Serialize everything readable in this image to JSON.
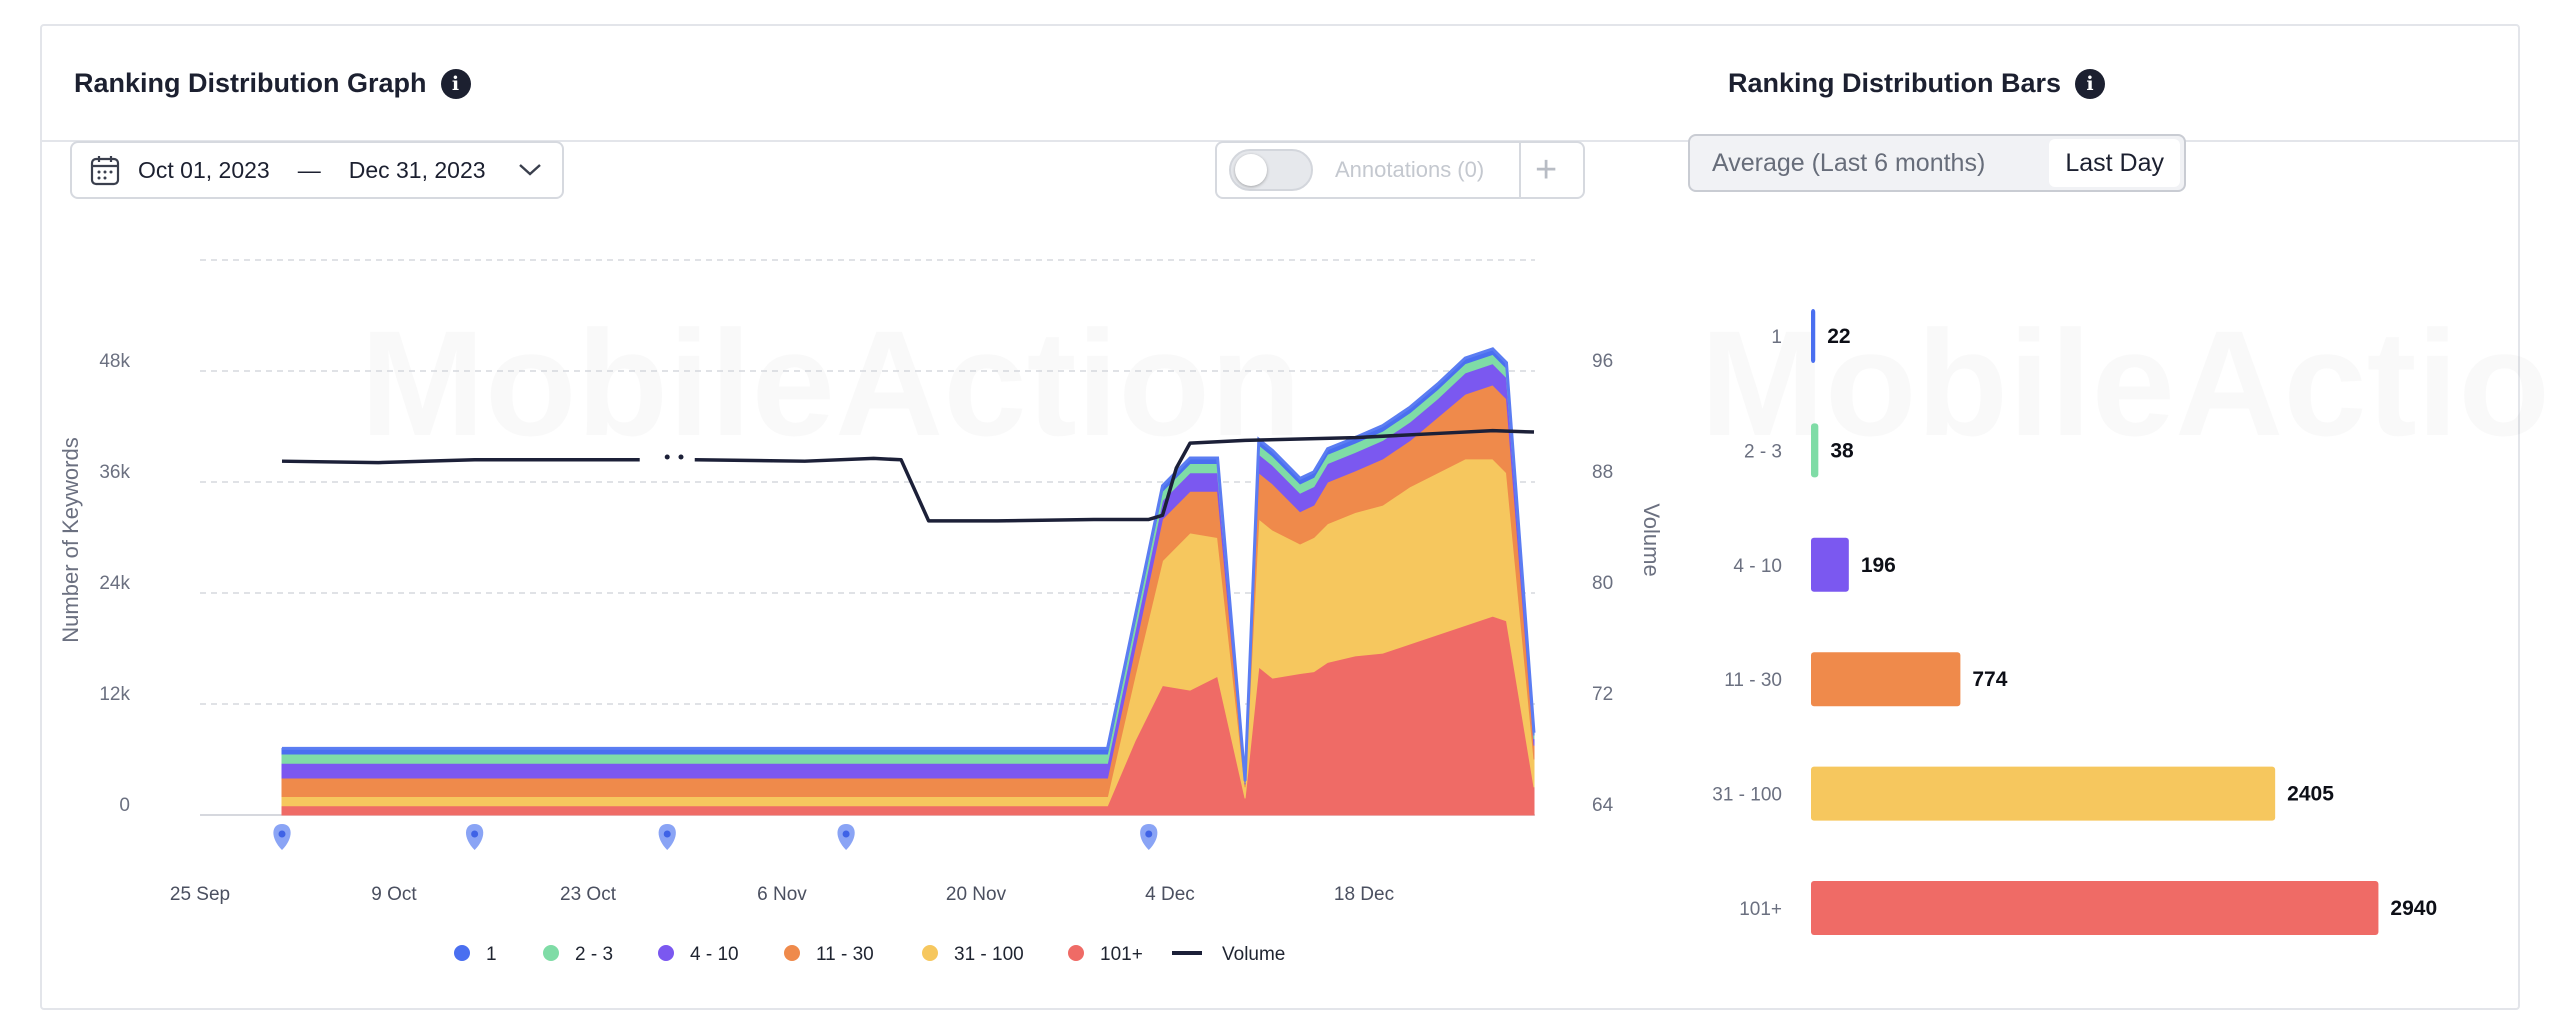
{
  "left_panel": {
    "title": "Ranking Distribution Graph",
    "date_range": {
      "start": "Oct 01, 2023",
      "separator": "—",
      "end": "Dec 31, 2023"
    },
    "annotations_label": "Annotations (0)",
    "annotations_toggle_on": false
  },
  "right_panel": {
    "title": "Ranking Distribution Bars",
    "segment_options": [
      "Average (Last 6 months)",
      "Last Day"
    ],
    "active_segment": "Last Day"
  },
  "watermark": "MobileAction",
  "colors": {
    "r1": "#4a6ff0",
    "r2_3": "#7fdca6",
    "r4_10": "#7b58f0",
    "r11_30": "#ef8a4b",
    "r31_100": "#f6c75e",
    "r101": "#ef6b66",
    "volume": "#1c2038"
  },
  "chart_data": [
    {
      "type": "area",
      "stacked": true,
      "ylabel": "Number of Keywords",
      "y2label": "Volume",
      "yticks": [
        "0",
        "12k",
        "24k",
        "36k",
        "48k"
      ],
      "ylim": [
        0,
        60000
      ],
      "y2ticks": [
        "64",
        "72",
        "80",
        "88",
        "96"
      ],
      "y2lim": [
        64,
        104
      ],
      "xticks": [
        "25 Sep",
        "9 Oct",
        "23 Oct",
        "6 Nov",
        "20 Nov",
        "4 Dec",
        "18 Dec"
      ],
      "x_start": "2023-10-01",
      "x_end": "2023-12-31",
      "grid": true,
      "annotation_markers": [
        "2023-10-01",
        "2023-10-15",
        "2023-10-29",
        "2023-11-11",
        "2023-12-03"
      ],
      "dates": [
        "2023-10-01",
        "2023-11-30",
        "2023-12-02",
        "2023-12-04",
        "2023-12-06",
        "2023-12-08",
        "2023-12-10",
        "2023-12-11",
        "2023-12-12",
        "2023-12-14",
        "2023-12-15",
        "2023-12-16",
        "2023-12-18",
        "2023-12-20",
        "2023-12-22",
        "2023-12-24",
        "2023-12-26",
        "2023-12-28",
        "2023-12-29",
        "2023-12-31"
      ],
      "series": [
        {
          "name": "101+",
          "values": [
            1000,
            1000,
            8000,
            14000,
            13500,
            15000,
            1800,
            16000,
            14800,
            15300,
            15500,
            16500,
            17200,
            17500,
            18500,
            19500,
            20500,
            21500,
            21000,
            3000
          ]
        },
        {
          "name": "31 - 100",
          "values": [
            1000,
            1000,
            7000,
            13500,
            17000,
            15000,
            1200,
            16000,
            16000,
            14000,
            14500,
            15000,
            15500,
            16000,
            17000,
            17500,
            18000,
            17000,
            16000,
            3000
          ]
        },
        {
          "name": "11 - 30",
          "values": [
            2000,
            2000,
            3000,
            4500,
            4500,
            5000,
            300,
            5000,
            5000,
            3500,
            3500,
            4500,
            4500,
            5000,
            5000,
            6000,
            7000,
            8000,
            8000,
            1500
          ]
        },
        {
          "name": "4 - 10",
          "values": [
            1600,
            1600,
            1800,
            2000,
            2000,
            2000,
            200,
            2000,
            2000,
            2000,
            2000,
            2000,
            2000,
            2000,
            2000,
            2000,
            2300,
            2300,
            2300,
            700
          ]
        },
        {
          "name": "2 - 3",
          "values": [
            1000,
            1000,
            1000,
            1000,
            1000,
            1000,
            100,
            1000,
            1000,
            1000,
            1000,
            1000,
            1000,
            1000,
            1000,
            1000,
            1000,
            1000,
            1000,
            400
          ]
        },
        {
          "name": "1",
          "values": [
            600,
            600,
            600,
            600,
            600,
            600,
            100,
            600,
            600,
            600,
            600,
            600,
            600,
            600,
            600,
            600,
            600,
            600,
            600,
            300
          ]
        }
      ],
      "volume": {
        "name": "Volume",
        "points": [
          {
            "date": "2023-10-01",
            "value": 89.5
          },
          {
            "date": "2023-10-08",
            "value": 89.4
          },
          {
            "date": "2023-10-15",
            "value": 89.6
          },
          {
            "date": "2023-10-22",
            "value": 89.6
          },
          {
            "date": "2023-10-27",
            "value": 89.6
          },
          {
            "date": "2023-10-31",
            "value": 89.6
          },
          {
            "date": "2023-11-08",
            "value": 89.5
          },
          {
            "date": "2023-11-13",
            "value": 89.7
          },
          {
            "date": "2023-11-15",
            "value": 89.6
          },
          {
            "date": "2023-11-17",
            "value": 85.2
          },
          {
            "date": "2023-11-22",
            "value": 85.2
          },
          {
            "date": "2023-11-29",
            "value": 85.3
          },
          {
            "date": "2023-12-03",
            "value": 85.3
          },
          {
            "date": "2023-12-04",
            "value": 85.6
          },
          {
            "date": "2023-12-05",
            "value": 89.0
          },
          {
            "date": "2023-12-06",
            "value": 90.8
          },
          {
            "date": "2023-12-10",
            "value": 91.0
          },
          {
            "date": "2023-12-18",
            "value": 91.2
          },
          {
            "date": "2023-12-24",
            "value": 91.5
          },
          {
            "date": "2023-12-28",
            "value": 91.7
          },
          {
            "date": "2023-12-31",
            "value": 91.6
          }
        ]
      },
      "legend": [
        "1",
        "2 - 3",
        "4 - 10",
        "11 - 30",
        "31 - 100",
        "101+",
        "Volume"
      ],
      "legend_placement": "bottom"
    },
    {
      "type": "bar",
      "orientation": "horizontal",
      "categories": [
        "1",
        "2 - 3",
        "4 - 10",
        "11 - 30",
        "31 - 100",
        "101+"
      ],
      "values": [
        22,
        38,
        196,
        774,
        2405,
        2940
      ],
      "xlim": [
        0,
        3000
      ]
    }
  ]
}
